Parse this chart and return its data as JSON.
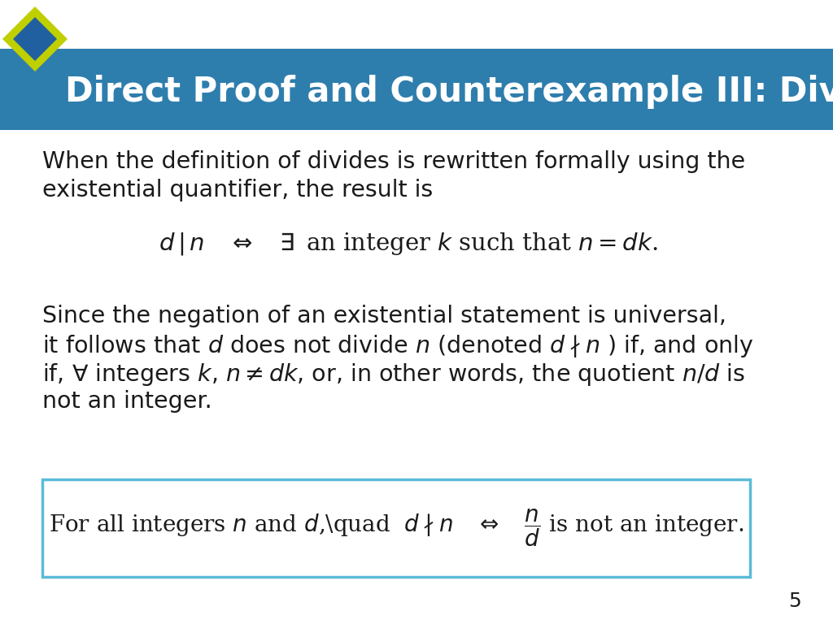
{
  "title": "Direct Proof and Counterexample III: Divisibility",
  "title_bg_color": "#2E7EAD",
  "title_text_color": "#FFFFFF",
  "bg_color": "#FFFFFF",
  "diamond_outer_color": "#BFCF00",
  "diamond_inner_color": "#2060A0",
  "body_text_color": "#1a1a1a",
  "box_border_color": "#5BBBD8",
  "page_number": "5",
  "para1_line1": "When the definition of divides is rewritten formally using the",
  "para1_line2": "existential quantifier, the result is",
  "formula1": "$d\\,|\\,n \\quad \\Leftrightarrow \\quad \\exists\\,$ an integer $k$ such that $n = dk$.",
  "para2_line1": "Since the negation of an existential statement is universal,",
  "para2_line2": "it follows that $d$ does not divide $n$ (denoted $d\\nmid n$ ) if, and only",
  "para2_line3": "if, $\\forall$ integers $k$, $n \\neq dk$, or, in other words, the quotient $n/d$ is",
  "para2_line4": "not an integer.",
  "box_formula": "For all integers $n$ and $d$,\\quad  $d\\nmid n \\quad\\Leftrightarrow\\quad \\dfrac{n}{d}$ is not an integer."
}
